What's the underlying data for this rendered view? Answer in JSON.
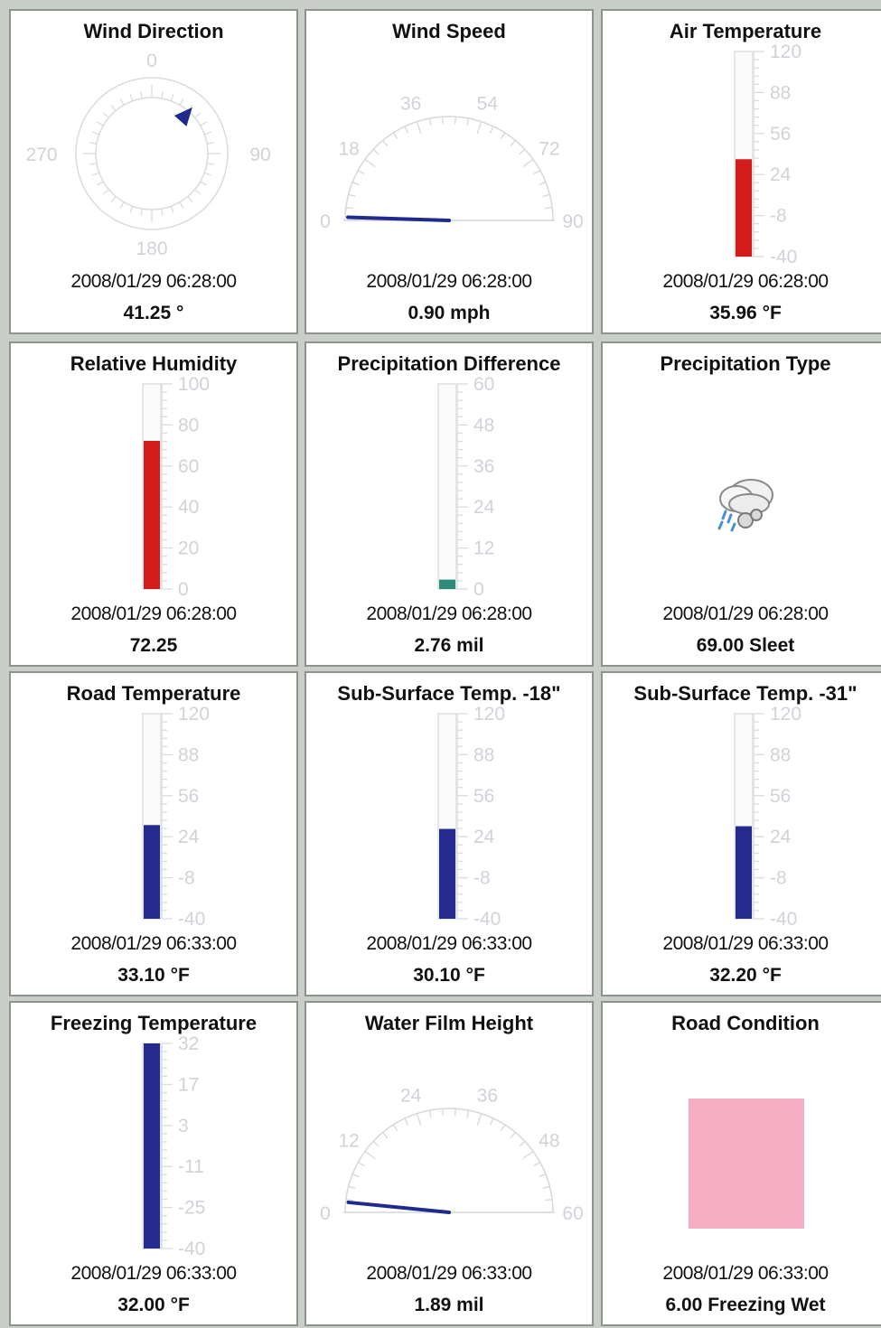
{
  "panels": [
    {
      "title": "Wind Direction",
      "timestamp": "2008/01/29 06:28:00",
      "value": "41.25 °",
      "type": "compass",
      "reading": 41.25,
      "scale_labels": [
        "0",
        "90",
        "180",
        "270"
      ],
      "color": "#1f2a8c"
    },
    {
      "title": "Wind Speed",
      "timestamp": "2008/01/29 06:28:00",
      "value": "0.90 mph",
      "type": "dial",
      "reading": 0.9,
      "min": 0,
      "max": 90,
      "scale_labels": [
        "0",
        "18",
        "36",
        "54",
        "72",
        "90"
      ],
      "color": "#1f2a8c"
    },
    {
      "title": "Air Temperature",
      "timestamp": "2008/01/29 06:28:00",
      "value": "35.96 °F",
      "type": "bar",
      "reading": 35.96,
      "min": -40,
      "max": 120,
      "scale_labels": [
        "120",
        "88",
        "56",
        "24",
        "-8",
        "-40"
      ],
      "color": "#d21c1c"
    },
    {
      "title": "Relative Humidity",
      "timestamp": "2008/01/29 06:28:00",
      "value": "72.25",
      "type": "bar",
      "reading": 72.25,
      "min": 0,
      "max": 100,
      "scale_labels": [
        "100",
        "80",
        "60",
        "40",
        "20",
        "0"
      ],
      "color": "#d21c1c"
    },
    {
      "title": "Precipitation Difference",
      "timestamp": "2008/01/29 06:28:00",
      "value": "2.76 mil",
      "type": "bar",
      "reading": 2.76,
      "min": 0,
      "max": 60,
      "scale_labels": [
        "60",
        "48",
        "36",
        "24",
        "12",
        "0"
      ],
      "color": "#2e8b7a"
    },
    {
      "title": "Precipitation Type",
      "timestamp": "2008/01/29 06:28:00",
      "value": "69.00 Sleet",
      "type": "icon",
      "icon": "sleet-cloud-icon"
    },
    {
      "title": "Road Temperature",
      "timestamp": "2008/01/29 06:33:00",
      "value": "33.10 °F",
      "type": "bar",
      "reading": 33.1,
      "min": -40,
      "max": 120,
      "scale_labels": [
        "120",
        "88",
        "56",
        "24",
        "-8",
        "-40"
      ],
      "color": "#252a8e"
    },
    {
      "title": "Sub-Surface Temp. -18\"",
      "timestamp": "2008/01/29 06:33:00",
      "value": "30.10 °F",
      "type": "bar",
      "reading": 30.1,
      "min": -40,
      "max": 120,
      "scale_labels": [
        "120",
        "88",
        "56",
        "24",
        "-8",
        "-40"
      ],
      "color": "#252a8e"
    },
    {
      "title": "Sub-Surface Temp. -31\"",
      "timestamp": "2008/01/29 06:33:00",
      "value": "32.20 °F",
      "type": "bar",
      "reading": 32.2,
      "min": -40,
      "max": 120,
      "scale_labels": [
        "120",
        "88",
        "56",
        "24",
        "-8",
        "-40"
      ],
      "color": "#252a8e"
    },
    {
      "title": "Freezing Temperature",
      "timestamp": "2008/01/29 06:33:00",
      "value": "32.00 °F",
      "type": "bar",
      "reading": 32.0,
      "min": -40,
      "max": 32,
      "scale_labels": [
        "32",
        "17",
        "3",
        "-11",
        "-25",
        "-40"
      ],
      "color": "#252a8e"
    },
    {
      "title": "Water Film Height",
      "timestamp": "2008/01/29 06:33:00",
      "value": "1.89 mil",
      "type": "dial",
      "reading": 1.89,
      "min": 0,
      "max": 60,
      "scale_labels": [
        "0",
        "12",
        "24",
        "36",
        "48",
        "60"
      ],
      "color": "#1f2a8c"
    },
    {
      "title": "Road Condition",
      "timestamp": "2008/01/29 06:33:00",
      "value": "6.00 Freezing Wet",
      "type": "swatch",
      "color": "#f5aec3"
    }
  ]
}
